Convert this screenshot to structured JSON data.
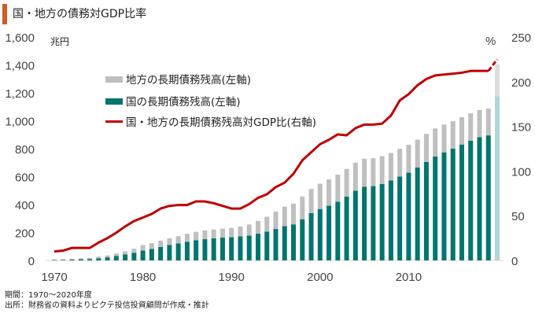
{
  "title": "国・地方の債務対GDP比率",
  "footnotes": {
    "period": "期間：1970～2020年度",
    "source": "出所：財務省の資料よりピクテ投信投資顧問が作成・推計"
  },
  "colors": {
    "accent": "#d35a23",
    "national": "#00756d",
    "local": "#bfbfbf",
    "national_estimate": "#b3d5d5",
    "local_estimate": "#dcdcdc",
    "ratio": "#c00000"
  },
  "chart_data": {
    "type": "bar",
    "title": "国・地方の債務対GDP比率",
    "xlabel": "",
    "ylabel": "兆円",
    "y2label": "%",
    "ylim": [
      0,
      1600
    ],
    "y2lim": [
      0,
      250
    ],
    "yticks": [
      "0",
      "200",
      "400",
      "600",
      "800",
      "1,000",
      "1,200",
      "1,400",
      "1,600"
    ],
    "y2ticks": [
      "0",
      "50",
      "100",
      "150",
      "200",
      "250"
    ],
    "xticks": [
      "1970",
      "1980",
      "1990",
      "2000",
      "2010"
    ],
    "legend_position": "top-left",
    "x": [
      1970,
      1971,
      1972,
      1973,
      1974,
      1975,
      1976,
      1977,
      1978,
      1979,
      1980,
      1981,
      1982,
      1983,
      1984,
      1985,
      1986,
      1987,
      1988,
      1989,
      1990,
      1991,
      1992,
      1993,
      1994,
      1995,
      1996,
      1997,
      1998,
      1999,
      2000,
      2001,
      2002,
      2003,
      2004,
      2005,
      2006,
      2007,
      2008,
      2009,
      2010,
      2011,
      2012,
      2013,
      2014,
      2015,
      2016,
      2017,
      2018,
      2019,
      2020
    ],
    "estimated_from_index": 50,
    "series": [
      {
        "name": "国の長期債務残高（左軸）",
        "type": "stacked-bar",
        "axis": "left",
        "values": [
          3,
          4,
          6,
          8,
          10,
          15,
          22,
          32,
          43,
          55,
          71,
          82,
          97,
          110,
          122,
          134,
          145,
          152,
          158,
          164,
          166,
          172,
          178,
          192,
          207,
          225,
          245,
          258,
          295,
          338,
          368,
          392,
          421,
          457,
          499,
          527,
          532,
          547,
          573,
          600,
          628,
          665,
          705,
          744,
          774,
          800,
          830,
          858,
          883,
          895,
          1175
        ]
      },
      {
        "name": "地方の長期債務残高（左軸）",
        "type": "stacked-bar",
        "axis": "left",
        "values": [
          4,
          5,
          6,
          7,
          8,
          12,
          14,
          17,
          22,
          29,
          39,
          42,
          45,
          49,
          52,
          57,
          60,
          63,
          63,
          64,
          67,
          70,
          79,
          91,
          106,
          125,
          139,
          149,
          163,
          174,
          181,
          188,
          193,
          198,
          201,
          201,
          200,
          199,
          197,
          199,
          200,
          200,
          201,
          201,
          199,
          197,
          196,
          195,
          194,
          192,
          230
        ]
      },
      {
        "name": "国・地方の長期債務残高対GDP比（右軸）",
        "type": "line",
        "axis": "right",
        "values": [
          10,
          11,
          14,
          14,
          14,
          20,
          25,
          31,
          38,
          44,
          48,
          52,
          58,
          61,
          62,
          62,
          66,
          66,
          64,
          61,
          58,
          58,
          63,
          70,
          74,
          82,
          87,
          97,
          112,
          121,
          130,
          135,
          141,
          140,
          148,
          152,
          152,
          153,
          162,
          179,
          186,
          196,
          203,
          207,
          208,
          209,
          210,
          212,
          212,
          212,
          225
        ]
      }
    ]
  },
  "legend": [
    {
      "label": "地方の長期債務残高(左軸)",
      "kind": "bar",
      "color": "#bfbfbf"
    },
    {
      "label": "国の長期債務残高(左軸)",
      "kind": "bar",
      "color": "#00756d"
    },
    {
      "label": "国・地方の長期債務残高対GDP比(右軸)",
      "kind": "line",
      "color": "#c00000"
    }
  ]
}
